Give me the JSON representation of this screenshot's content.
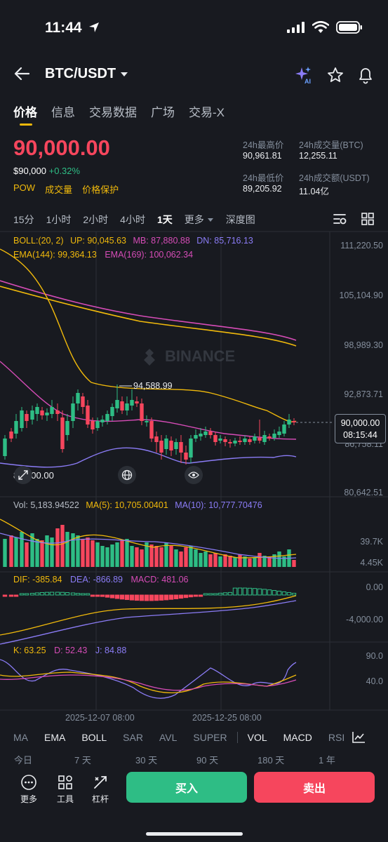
{
  "status_bar": {
    "time": "11:44"
  },
  "header": {
    "pair": "BTC/USDT"
  },
  "tabs": [
    {
      "label": "价格"
    },
    {
      "label": "信息"
    },
    {
      "label": "交易数据"
    },
    {
      "label": "广场"
    },
    {
      "label": "交易-X"
    }
  ],
  "price": {
    "last": "90,000.00",
    "usd": "$90,000",
    "change": "+0.32%",
    "tags": [
      "POW",
      "成交量",
      "价格保护"
    ]
  },
  "stats": {
    "high_label": "24h最高价",
    "high_value": "90,961.81",
    "vol_btc_label": "24h成交量(BTC)",
    "vol_btc_value": "12,255.11",
    "low_label": "24h最低价",
    "low_value": "89,205.92",
    "vol_usdt_label": "24h成交额(USDT)",
    "vol_usdt_value": "11.04亿"
  },
  "intervals": [
    "15分",
    "1小时",
    "2小时",
    "4小时",
    "1天",
    "更多",
    "深度图"
  ],
  "indicators": {
    "boll": {
      "label": "BOLL:(20, 2)",
      "up": "UP: 90,045.63",
      "mb": "MB: 87,880.88",
      "dn": "DN: 85,716.13"
    },
    "ema": {
      "e144": "EMA(144): 99,364.13",
      "e169": "EMA(169): 100,062.34"
    },
    "vol": {
      "vol": "Vol: 5,183.94522",
      "ma5": "MA(5): 10,705.00401",
      "ma10": "MA(10): 10,777.70476"
    },
    "macd": {
      "dif": "DIF: -385.84",
      "dea": "DEA: -866.89",
      "macd": "MACD: 481.06"
    },
    "kdj": {
      "k": "K: 63.25",
      "d": "D: 52.43",
      "j": "J: 84.88"
    }
  },
  "axis": {
    "price": [
      "111,220.50",
      "105,104.90",
      "98,989.30",
      "92,873.71",
      "86,758.11",
      "80,642.51"
    ],
    "vol": [
      "39.7K",
      "4.45K"
    ],
    "macd": [
      "0.00",
      "-4,000.00"
    ],
    "kdj": [
      "90.0",
      "40.0"
    ],
    "dates": [
      "2025-12-07 08:00",
      "2025-12-25 08:00"
    ]
  },
  "chart_labels": {
    "high": "94,588.99",
    "low": "84,000.00",
    "current": "90,000.00",
    "countdown": "08:15:44",
    "watermark": "BINANCE"
  },
  "indicator_tabs": [
    "MA",
    "EMA",
    "BOLL",
    "SAR",
    "AVL",
    "SUPER",
    "VOL",
    "MACD",
    "RSI"
  ],
  "periods": [
    "今日",
    "7 天",
    "30 天",
    "90 天",
    "180 天",
    "1 年"
  ],
  "bottom": {
    "more": "更多",
    "tools": "工具",
    "leverage": "杠杆",
    "buy": "买入",
    "sell": "卖出"
  },
  "colors": {
    "up": "#2ebd85",
    "down": "#f6465d",
    "accent": "#f0b90b",
    "bg": "#181a20"
  }
}
